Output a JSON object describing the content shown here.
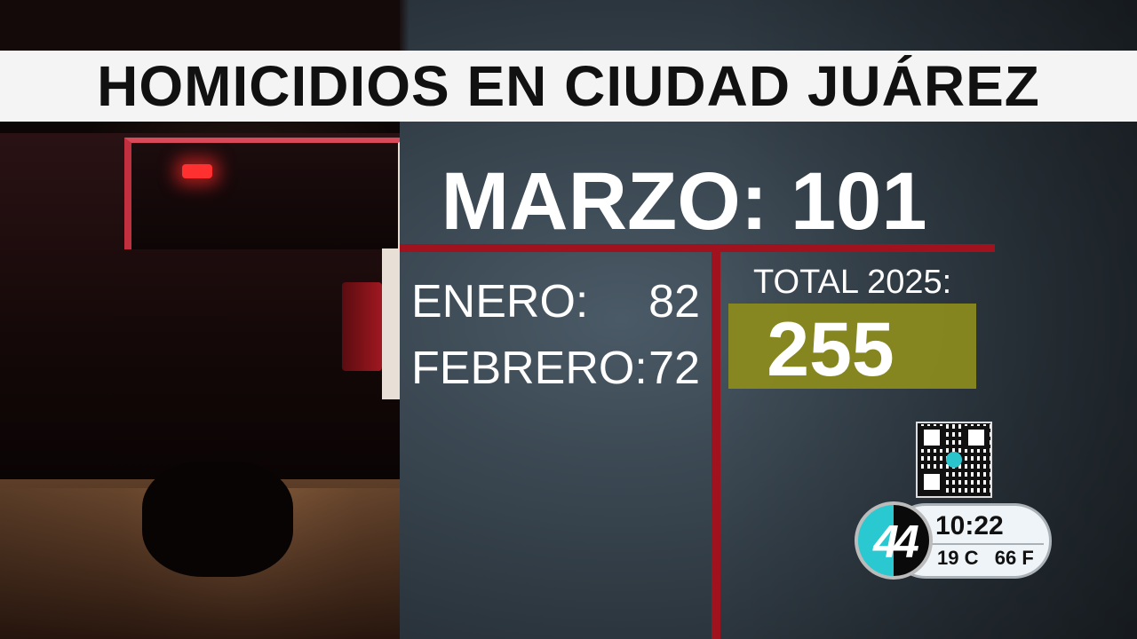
{
  "banner": {
    "title": "HOMICIDIOS EN CIUDAD JUÁREZ"
  },
  "headline": "MARZO: 101",
  "months": [
    {
      "label": "ENERO:",
      "value": "82"
    },
    {
      "label": "FEBRERO:",
      "value": "72"
    }
  ],
  "total": {
    "label": "TOTAL 2025:",
    "value": "255"
  },
  "clock": {
    "time": "10:22",
    "temp": "19 C   66 F"
  },
  "logo": {
    "text": "44"
  },
  "colors": {
    "accent_red": "#a0121e",
    "total_box": "#8a8a1e",
    "logo_cyan": "#2ac8d0"
  }
}
